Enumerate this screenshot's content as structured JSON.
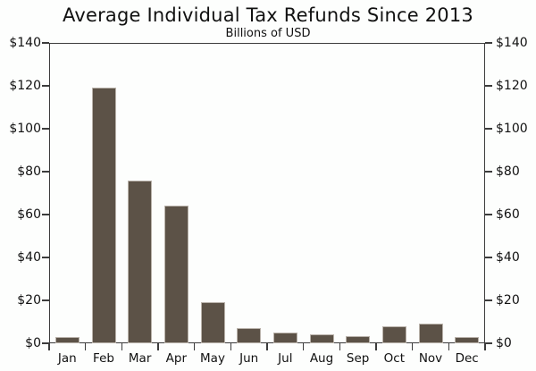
{
  "chart_data": {
    "type": "bar",
    "title": "Average Individual Tax Refunds Since 2013",
    "subtitle": "Billions of USD",
    "categories": [
      "Jan",
      "Feb",
      "Mar",
      "Apr",
      "May",
      "Jun",
      "Jul",
      "Aug",
      "Sep",
      "Oct",
      "Nov",
      "Dec"
    ],
    "values": [
      3,
      119,
      76,
      64,
      19,
      7,
      5,
      4,
      3.5,
      8,
      9,
      3
    ],
    "xlabel": "",
    "ylabel": "",
    "ylim": [
      0,
      140
    ],
    "y_tick_values": [
      140,
      120,
      100,
      80,
      60,
      40,
      20,
      0
    ],
    "y_tick_labels": [
      "$140",
      "$120",
      "$100",
      "$80",
      "$60",
      "$40",
      "$20",
      "$0"
    ],
    "dual_y_axis": true,
    "grid": false,
    "legend_position": "none",
    "colors": {
      "bar_fill": "#5c5247",
      "bar_edge": "#b9b2aa",
      "axis": "#3c3c3c",
      "text": "#111111",
      "background": "#fdfefd"
    }
  }
}
